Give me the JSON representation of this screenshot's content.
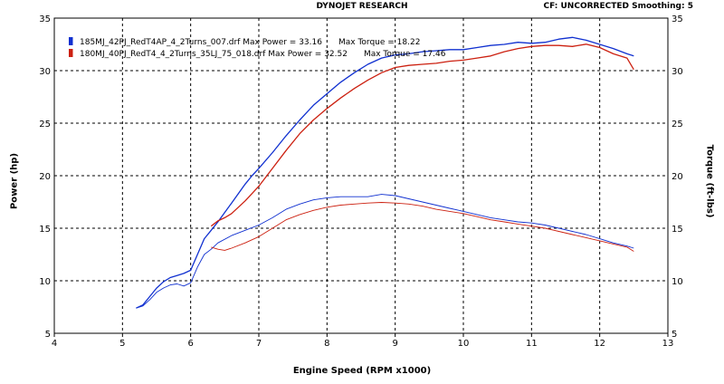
{
  "header": {
    "title": "DYNOJET RESEARCH",
    "cf_label": "CF:",
    "cf_value": "UNCORRECTED",
    "smoothing_label": "Smoothing:",
    "smoothing_value": "5"
  },
  "legend": [
    {
      "file": "185MJ_42PJ_RedT4AP_4_2Turns_007.drf",
      "max_power": "Max Power = 33.16",
      "max_torque": "Max Torque = 18.22",
      "color": "#1030d0"
    },
    {
      "file": "180MJ_40PJ_RedT4_4_2Turns_35LJ_75_018.drf",
      "max_power": "Max Power = 32.52",
      "max_torque": "Max Torque = 17.46",
      "color": "#cc2010"
    }
  ],
  "chart_data": {
    "type": "line",
    "title": "DYNOJET RESEARCH",
    "xlabel": "Engine Speed (RPM x1000)",
    "ylabel": "Power (hp)",
    "y2label": "Torque (ft-lbs)",
    "xlim": [
      4,
      13
    ],
    "ylim": [
      5,
      35
    ],
    "y2lim": [
      5,
      35
    ],
    "x_ticks": [
      4,
      5,
      6,
      7,
      8,
      9,
      10,
      11,
      12,
      13
    ],
    "y_ticks": [
      5,
      10,
      15,
      20,
      25,
      30,
      35
    ],
    "grid": "dashed",
    "legend_position": "top-left",
    "series": [
      {
        "name": "185MJ_42PJ_RedT4AP_4_2Turns_007.drf",
        "quantity": "power",
        "color": "#1030d0",
        "x": [
          5.2,
          5.3,
          5.4,
          5.5,
          5.6,
          5.7,
          5.8,
          5.9,
          6.0,
          6.1,
          6.2,
          6.3,
          6.4,
          6.5,
          6.6,
          6.7,
          6.8,
          6.9,
          7.0,
          7.2,
          7.4,
          7.6,
          7.8,
          8.0,
          8.2,
          8.4,
          8.6,
          8.8,
          9.0,
          9.2,
          9.4,
          9.6,
          9.8,
          10.0,
          10.2,
          10.4,
          10.6,
          10.8,
          11.0,
          11.2,
          11.4,
          11.6,
          11.8,
          12.0,
          12.2,
          12.4,
          12.5
        ],
        "y": [
          7.4,
          7.7,
          8.5,
          9.3,
          9.9,
          10.3,
          10.5,
          10.7,
          11.0,
          12.5,
          14.0,
          14.8,
          15.6,
          16.5,
          17.4,
          18.3,
          19.2,
          20.0,
          20.7,
          22.2,
          23.8,
          25.3,
          26.7,
          27.8,
          28.9,
          29.8,
          30.6,
          31.2,
          31.5,
          31.6,
          31.8,
          31.9,
          32.0,
          32.0,
          32.2,
          32.4,
          32.5,
          32.7,
          32.6,
          32.7,
          33.0,
          33.16,
          32.9,
          32.5,
          32.1,
          31.6,
          31.4
        ]
      },
      {
        "name": "180MJ_40PJ_RedT4_4_2Turns_35LJ_75_018.drf",
        "quantity": "power",
        "color": "#cc2010",
        "x": [
          6.3,
          6.4,
          6.5,
          6.6,
          6.7,
          6.8,
          6.9,
          7.0,
          7.2,
          7.4,
          7.6,
          7.8,
          8.0,
          8.2,
          8.4,
          8.6,
          8.8,
          9.0,
          9.2,
          9.4,
          9.6,
          9.8,
          10.0,
          10.2,
          10.4,
          10.6,
          10.8,
          11.0,
          11.2,
          11.4,
          11.6,
          11.8,
          12.0,
          12.2,
          12.4,
          12.5
        ],
        "y": [
          15.2,
          15.7,
          16.0,
          16.4,
          17.0,
          17.6,
          18.3,
          19.0,
          20.7,
          22.4,
          24.0,
          25.3,
          26.4,
          27.4,
          28.3,
          29.1,
          29.8,
          30.3,
          30.5,
          30.6,
          30.7,
          30.9,
          31.0,
          31.2,
          31.4,
          31.8,
          32.1,
          32.3,
          32.4,
          32.4,
          32.3,
          32.52,
          32.2,
          31.6,
          31.2,
          30.1
        ]
      },
      {
        "name": "185MJ_42PJ_RedT4AP_4_2Turns_007.drf",
        "quantity": "torque",
        "color": "#1030d0",
        "x": [
          5.2,
          5.3,
          5.4,
          5.5,
          5.6,
          5.7,
          5.8,
          5.9,
          6.0,
          6.1,
          6.2,
          6.3,
          6.4,
          6.6,
          6.8,
          7.0,
          7.2,
          7.4,
          7.6,
          7.8,
          8.0,
          8.2,
          8.4,
          8.6,
          8.8,
          9.0,
          9.2,
          9.4,
          9.6,
          9.8,
          10.0,
          10.2,
          10.4,
          10.6,
          10.8,
          11.0,
          11.2,
          11.4,
          11.6,
          11.8,
          12.0,
          12.2,
          12.4,
          12.5
        ],
        "y": [
          7.4,
          7.6,
          8.2,
          8.9,
          9.3,
          9.6,
          9.7,
          9.5,
          9.8,
          11.3,
          12.5,
          13.0,
          13.6,
          14.3,
          14.8,
          15.3,
          16.0,
          16.8,
          17.3,
          17.7,
          17.9,
          18.0,
          18.0,
          18.0,
          18.22,
          18.1,
          17.8,
          17.5,
          17.2,
          16.9,
          16.6,
          16.3,
          16.0,
          15.8,
          15.6,
          15.5,
          15.3,
          15.0,
          14.7,
          14.4,
          14.0,
          13.6,
          13.3,
          13.1
        ]
      },
      {
        "name": "180MJ_40PJ_RedT4_4_2Turns_35LJ_75_018.drf",
        "quantity": "torque",
        "color": "#cc2010",
        "x": [
          6.3,
          6.4,
          6.5,
          6.6,
          6.8,
          7.0,
          7.2,
          7.4,
          7.6,
          7.8,
          8.0,
          8.2,
          8.4,
          8.6,
          8.8,
          9.0,
          9.2,
          9.4,
          9.6,
          9.8,
          10.0,
          10.2,
          10.4,
          10.6,
          10.8,
          11.0,
          11.2,
          11.4,
          11.6,
          11.8,
          12.0,
          12.2,
          12.4,
          12.5
        ],
        "y": [
          13.2,
          13.0,
          12.9,
          13.1,
          13.6,
          14.2,
          15.0,
          15.8,
          16.3,
          16.7,
          17.0,
          17.2,
          17.3,
          17.4,
          17.46,
          17.4,
          17.3,
          17.1,
          16.8,
          16.6,
          16.4,
          16.1,
          15.8,
          15.6,
          15.4,
          15.2,
          15.0,
          14.7,
          14.4,
          14.1,
          13.8,
          13.5,
          13.2,
          12.8
        ]
      }
    ]
  }
}
